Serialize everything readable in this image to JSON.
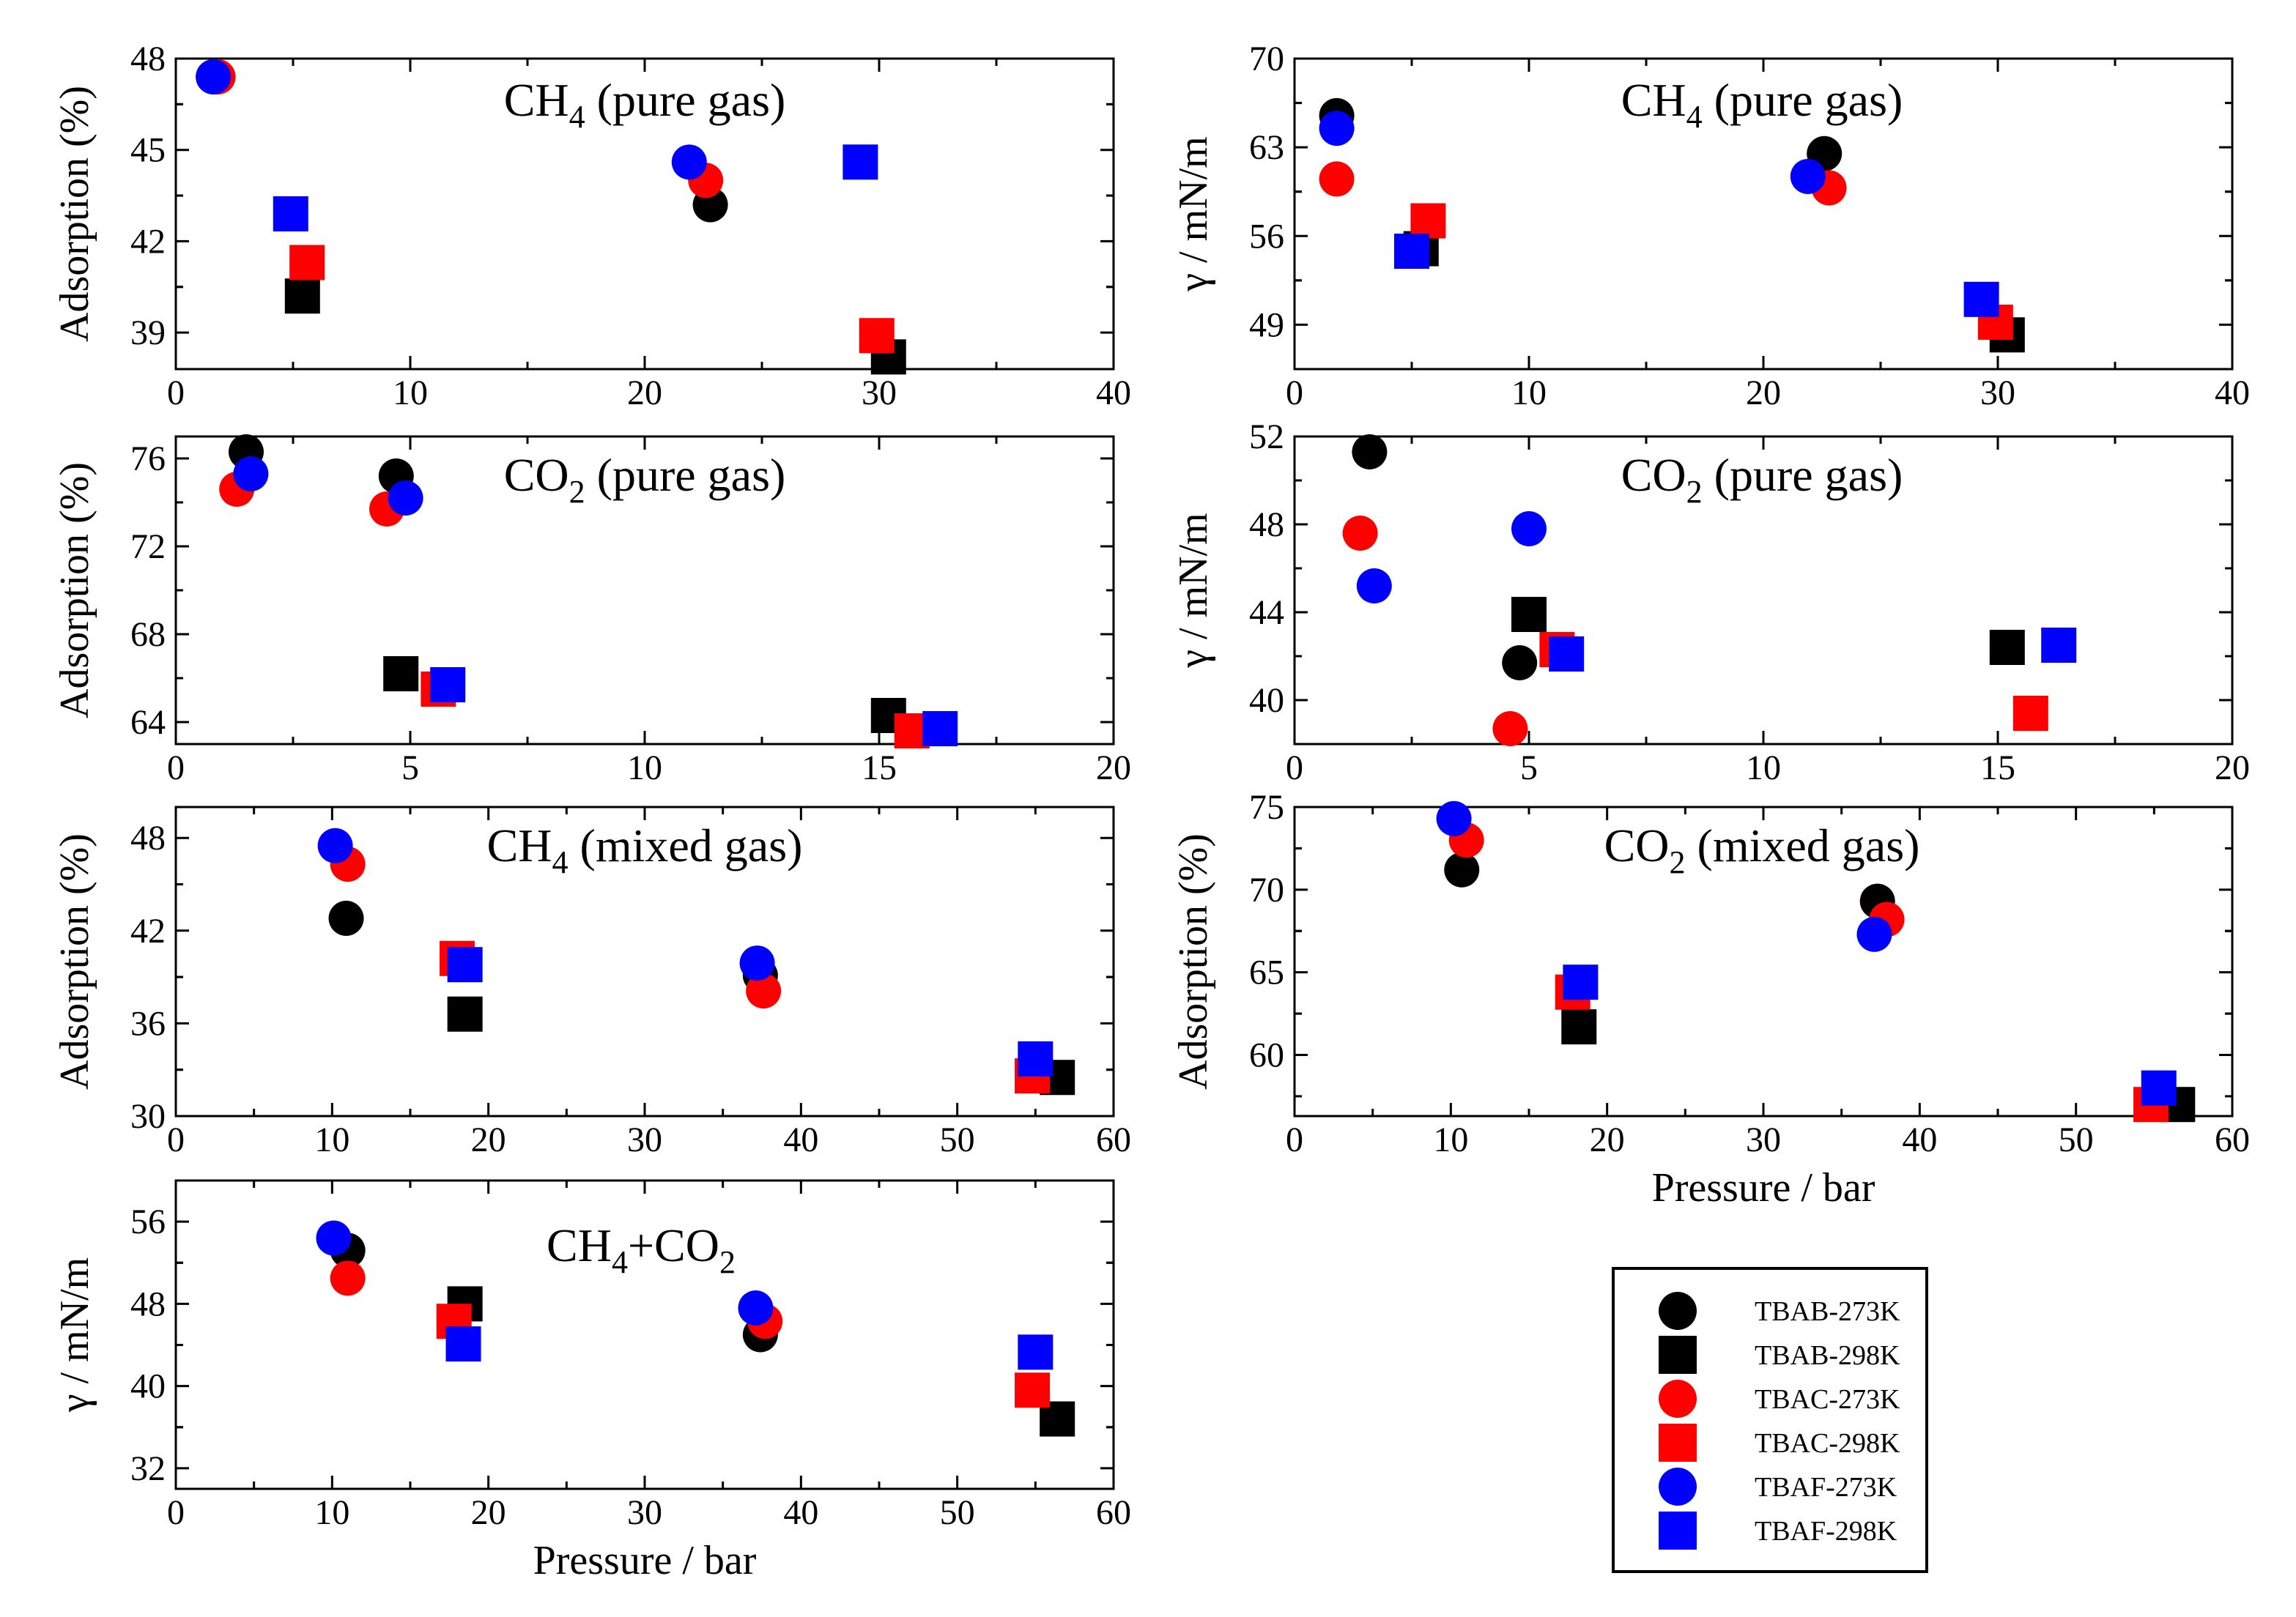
{
  "series_styles": [
    {
      "name": "TBAB-273K",
      "marker": "circle",
      "color": "#000000"
    },
    {
      "name": "TBAB-298K",
      "marker": "square",
      "color": "#000000"
    },
    {
      "name": "TBAC-273K",
      "marker": "circle",
      "color": "#ff0000"
    },
    {
      "name": "TBAC-298K",
      "marker": "square",
      "color": "#ff0000"
    },
    {
      "name": "TBAF-273K",
      "marker": "circle",
      "color": "#0000ff"
    },
    {
      "name": "TBAF-298K",
      "marker": "square",
      "color": "#0000ff"
    }
  ],
  "chart_data": [
    {
      "type": "scatter",
      "title": "CH4 (pure gas)",
      "title_parts": {
        "main": "CH",
        "sub": "4",
        "rest": " (pure gas)"
      },
      "xlabel": "",
      "ylabel": "Adsorption (%)",
      "xlim": [
        0,
        40
      ],
      "ylim": [
        37.8,
        48
      ],
      "xticks": [
        "0",
        "10",
        "20",
        "30",
        "40"
      ],
      "yticks": [
        "39",
        "42",
        "45",
        "48"
      ],
      "series": [
        {
          "name": "TBAB-273K",
          "points": [
            [
              1.6,
              47.4
            ],
            [
              22.8,
              43.2
            ]
          ]
        },
        {
          "name": "TBAB-298K",
          "points": [
            [
              5.4,
              40.2
            ],
            [
              30.4,
              38.2
            ]
          ]
        },
        {
          "name": "TBAC-273K",
          "points": [
            [
              1.8,
              47.4
            ],
            [
              22.6,
              44.0
            ]
          ]
        },
        {
          "name": "TBAC-298K",
          "points": [
            [
              5.6,
              41.3
            ],
            [
              29.9,
              38.9
            ]
          ]
        },
        {
          "name": "TBAF-273K",
          "points": [
            [
              1.6,
              47.4
            ],
            [
              21.9,
              44.6
            ]
          ]
        },
        {
          "name": "TBAF-298K",
          "points": [
            [
              4.9,
              42.9
            ],
            [
              29.2,
              44.6
            ]
          ]
        }
      ]
    },
    {
      "type": "scatter",
      "title": "CH4 (pure gas)",
      "title_parts": {
        "main": "CH",
        "sub": "4",
        "rest": " (pure gas)"
      },
      "xlabel": "",
      "ylabel": "γ / mN/m",
      "xlim": [
        0,
        40
      ],
      "ylim": [
        45.5,
        70
      ],
      "xticks": [
        "0",
        "10",
        "20",
        "30",
        "40"
      ],
      "yticks": [
        "49",
        "56",
        "63",
        "70"
      ],
      "series": [
        {
          "name": "TBAB-273K",
          "points": [
            [
              1.8,
              65.5
            ],
            [
              22.6,
              62.5
            ]
          ]
        },
        {
          "name": "TBAB-298K",
          "points": [
            [
              5.4,
              55.0
            ],
            [
              30.4,
              48.2
            ]
          ]
        },
        {
          "name": "TBAC-273K",
          "points": [
            [
              1.8,
              60.5
            ],
            [
              22.8,
              59.8
            ]
          ]
        },
        {
          "name": "TBAC-298K",
          "points": [
            [
              5.7,
              57.2
            ],
            [
              29.9,
              49.2
            ]
          ]
        },
        {
          "name": "TBAF-273K",
          "points": [
            [
              1.8,
              64.5
            ],
            [
              21.9,
              60.7
            ]
          ]
        },
        {
          "name": "TBAF-298K",
          "points": [
            [
              5.0,
              54.8
            ],
            [
              29.3,
              51.0
            ]
          ]
        }
      ]
    },
    {
      "type": "scatter",
      "title": "CO2 (pure gas)",
      "title_parts": {
        "main": "CO",
        "sub": "2",
        "rest": " (pure gas)"
      },
      "xlabel": "",
      "ylabel": "Adsorption (%)",
      "xlim": [
        0,
        20
      ],
      "ylim": [
        63,
        77
      ],
      "xticks": [
        "0",
        "5",
        "10",
        "15",
        "20"
      ],
      "yticks": [
        "64",
        "68",
        "72",
        "76"
      ],
      "series": [
        {
          "name": "TBAB-273K",
          "points": [
            [
              1.5,
              76.3
            ],
            [
              4.7,
              75.2
            ]
          ]
        },
        {
          "name": "TBAB-298K",
          "points": [
            [
              4.8,
              66.2
            ],
            [
              15.2,
              64.3
            ]
          ]
        },
        {
          "name": "TBAC-273K",
          "points": [
            [
              1.3,
              74.6
            ],
            [
              4.5,
              73.7
            ]
          ]
        },
        {
          "name": "TBAC-298K",
          "points": [
            [
              5.6,
              65.5
            ],
            [
              15.7,
              63.6
            ]
          ]
        },
        {
          "name": "TBAF-273K",
          "points": [
            [
              1.6,
              75.3
            ],
            [
              4.9,
              74.2
            ]
          ]
        },
        {
          "name": "TBAF-298K",
          "points": [
            [
              5.8,
              65.7
            ],
            [
              16.3,
              63.7
            ]
          ]
        }
      ]
    },
    {
      "type": "scatter",
      "title": "CO2 (pure gas)",
      "title_parts": {
        "main": "CO",
        "sub": "2",
        "rest": " (pure gas)"
      },
      "xlabel": "",
      "ylabel": "γ / mN/m",
      "xlim": [
        0,
        20
      ],
      "ylim": [
        38,
        52
      ],
      "xticks": [
        "0",
        "5",
        "10",
        "15",
        "20"
      ],
      "yticks": [
        "40",
        "44",
        "48",
        "52"
      ],
      "series": [
        {
          "name": "TBAB-273K",
          "points": [
            [
              1.6,
              51.3
            ],
            [
              4.8,
              41.7
            ]
          ]
        },
        {
          "name": "TBAB-298K",
          "points": [
            [
              5.0,
              43.9
            ],
            [
              15.2,
              42.4
            ]
          ]
        },
        {
          "name": "TBAC-273K",
          "points": [
            [
              1.4,
              47.6
            ],
            [
              4.6,
              38.7
            ]
          ]
        },
        {
          "name": "TBAC-298K",
          "points": [
            [
              5.6,
              42.3
            ],
            [
              15.7,
              39.4
            ]
          ]
        },
        {
          "name": "TBAF-273K",
          "points": [
            [
              1.7,
              45.2
            ],
            [
              5.0,
              47.8
            ]
          ]
        },
        {
          "name": "TBAF-298K",
          "points": [
            [
              5.8,
              42.1
            ],
            [
              16.3,
              42.5
            ]
          ]
        }
      ]
    },
    {
      "type": "scatter",
      "title": "CH4 (mixed gas)",
      "title_parts": {
        "main": "CH",
        "sub": "4",
        "rest": " (mixed gas)"
      },
      "xlabel": "",
      "ylabel": "Adsorption (%)",
      "xlim": [
        0,
        60
      ],
      "ylim": [
        30,
        50
      ],
      "xticks": [
        "0",
        "10",
        "20",
        "30",
        "40",
        "50",
        "60"
      ],
      "yticks": [
        "30",
        "36",
        "42",
        "48"
      ],
      "series": [
        {
          "name": "TBAB-273K",
          "points": [
            [
              10.9,
              42.8
            ],
            [
              37.4,
              39.1
            ]
          ]
        },
        {
          "name": "TBAB-298K",
          "points": [
            [
              18.5,
              36.6
            ],
            [
              56.4,
              32.5
            ]
          ]
        },
        {
          "name": "TBAC-273K",
          "points": [
            [
              11.0,
              46.3
            ],
            [
              37.6,
              38.1
            ]
          ]
        },
        {
          "name": "TBAC-298K",
          "points": [
            [
              18.0,
              40.2
            ],
            [
              54.8,
              32.6
            ]
          ]
        },
        {
          "name": "TBAF-273K",
          "points": [
            [
              10.2,
              47.5
            ],
            [
              37.2,
              39.9
            ]
          ]
        },
        {
          "name": "TBAF-298K",
          "points": [
            [
              18.5,
              39.8
            ],
            [
              55.0,
              33.7
            ]
          ]
        }
      ]
    },
    {
      "type": "scatter",
      "title": "CO2 (mixed gas)",
      "title_parts": {
        "main": "CO",
        "sub": "2",
        "rest": " (mixed gas)"
      },
      "xlabel": "Pressure / bar",
      "ylabel": "Adsorption (%)",
      "xlim": [
        0,
        60
      ],
      "ylim": [
        56.3,
        75
      ],
      "xticks": [
        "0",
        "10",
        "20",
        "30",
        "40",
        "50",
        "60"
      ],
      "yticks": [
        "60",
        "65",
        "70",
        "75"
      ],
      "series": [
        {
          "name": "TBAB-273K",
          "points": [
            [
              10.7,
              71.2
            ],
            [
              37.3,
              69.3
            ]
          ]
        },
        {
          "name": "TBAB-298K",
          "points": [
            [
              18.2,
              61.7
            ],
            [
              56.5,
              57.0
            ]
          ]
        },
        {
          "name": "TBAC-273K",
          "points": [
            [
              11.0,
              73.0
            ],
            [
              37.9,
              68.2
            ]
          ]
        },
        {
          "name": "TBAC-298K",
          "points": [
            [
              17.8,
              63.8
            ],
            [
              54.8,
              57.0
            ]
          ]
        },
        {
          "name": "TBAF-273K",
          "points": [
            [
              10.2,
              74.3
            ],
            [
              37.1,
              67.3
            ]
          ]
        },
        {
          "name": "TBAF-298K",
          "points": [
            [
              18.3,
              64.4
            ],
            [
              55.3,
              58.0
            ]
          ]
        }
      ]
    },
    {
      "type": "scatter",
      "title": "CH4+CO2",
      "title_parts": {
        "main": "CH",
        "sub": "4",
        "rest": "+CO",
        "sub2": "2"
      },
      "xlabel": "Pressure / bar",
      "ylabel": "γ / mN/m",
      "xlim": [
        0,
        60
      ],
      "ylim": [
        30,
        60
      ],
      "xticks": [
        "0",
        "10",
        "20",
        "30",
        "40",
        "50",
        "60"
      ],
      "yticks": [
        "32",
        "40",
        "48",
        "56"
      ],
      "series": [
        {
          "name": "TBAB-273K",
          "points": [
            [
              11.0,
              53.2
            ],
            [
              37.4,
              45.0
            ]
          ]
        },
        {
          "name": "TBAB-298K",
          "points": [
            [
              18.5,
              48.0
            ],
            [
              56.4,
              36.8
            ]
          ]
        },
        {
          "name": "TBAC-273K",
          "points": [
            [
              11.0,
              50.5
            ],
            [
              37.7,
              46.3
            ]
          ]
        },
        {
          "name": "TBAC-298K",
          "points": [
            [
              17.8,
              46.3
            ],
            [
              54.8,
              39.6
            ]
          ]
        },
        {
          "name": "TBAF-273K",
          "points": [
            [
              10.1,
              54.4
            ],
            [
              37.1,
              47.6
            ]
          ]
        },
        {
          "name": "TBAF-298K",
          "points": [
            [
              18.4,
              44.1
            ],
            [
              55.0,
              43.3
            ]
          ]
        }
      ]
    }
  ]
}
